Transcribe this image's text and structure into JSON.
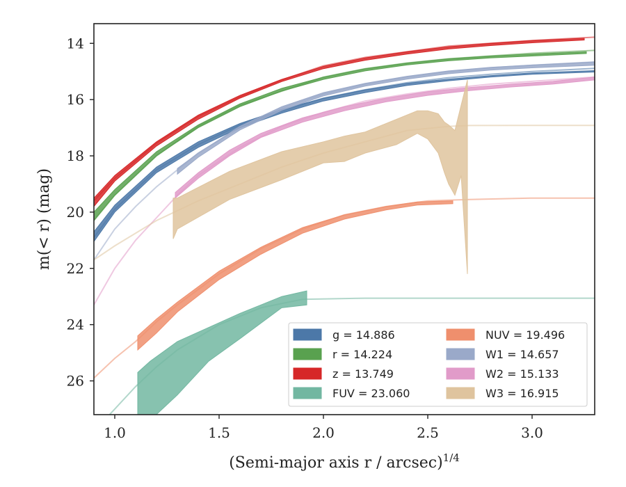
{
  "chart_data": {
    "type": "line",
    "xlabel": "(Semi-major axis r / arcsec)",
    "xlabel_sup": "1/4",
    "ylabel": "m(< r) (mag)",
    "xlim": [
      0.9,
      3.3
    ],
    "ylim": [
      27.2,
      13.3
    ],
    "y_inverted": true,
    "x_ticks": [
      "1.0",
      "1.5",
      "2.0",
      "2.5",
      "3.0"
    ],
    "y_ticks": [
      "14",
      "16",
      "18",
      "20",
      "22",
      "24",
      "26"
    ],
    "grid": false,
    "legend_placement": "lower-right",
    "legend_columns": 2,
    "series": [
      {
        "name": "g",
        "label": "g = 14.886",
        "color": "#4c78a8",
        "faint_x": [
          0.9,
          1.0,
          1.2,
          1.4,
          1.6,
          1.8,
          2.0,
          2.2,
          2.4,
          2.6,
          2.8,
          3.0,
          3.3
        ],
        "faint_y": [
          20.9,
          19.9,
          18.5,
          17.6,
          16.9,
          16.4,
          15.95,
          15.65,
          15.4,
          15.22,
          15.1,
          15.0,
          14.89
        ],
        "band_x": [
          0.9,
          1.0,
          1.2,
          1.4,
          1.6,
          1.8,
          2.0,
          2.2,
          2.4,
          2.6,
          2.8,
          3.0,
          3.3
        ],
        "band_lo": [
          20.7,
          19.75,
          18.4,
          17.5,
          16.85,
          16.35,
          15.95,
          15.65,
          15.42,
          15.27,
          15.15,
          15.05,
          14.97
        ],
        "band_hi": [
          21.05,
          20.0,
          18.6,
          17.7,
          17.0,
          16.48,
          16.05,
          15.75,
          15.5,
          15.33,
          15.2,
          15.1,
          15.02
        ]
      },
      {
        "name": "r",
        "label": "r = 14.224",
        "color": "#59a14f",
        "faint_x": [
          0.9,
          1.0,
          1.2,
          1.4,
          1.6,
          1.8,
          2.0,
          2.2,
          2.4,
          2.6,
          2.8,
          3.0,
          3.3
        ],
        "faint_y": [
          20.3,
          19.4,
          18.0,
          16.95,
          16.2,
          15.7,
          15.2,
          14.9,
          14.7,
          14.55,
          14.45,
          14.35,
          14.25
        ],
        "band_x": [
          0.9,
          1.0,
          1.2,
          1.4,
          1.6,
          1.8,
          2.0,
          2.2,
          2.4,
          2.6,
          2.8,
          3.0,
          3.26
        ],
        "band_lo": [
          20.0,
          19.2,
          17.85,
          16.9,
          16.15,
          15.6,
          15.2,
          14.9,
          14.7,
          14.55,
          14.45,
          14.38,
          14.3
        ],
        "band_hi": [
          20.3,
          19.4,
          18.0,
          17.0,
          16.25,
          15.7,
          15.28,
          14.98,
          14.77,
          14.62,
          14.52,
          14.45,
          14.36
        ]
      },
      {
        "name": "z",
        "label": "z = 13.749",
        "color": "#d62728",
        "faint_x": [
          0.9,
          1.0,
          1.2,
          1.4,
          1.6,
          1.8,
          2.0,
          2.2,
          2.4,
          2.6,
          2.8,
          3.0,
          3.3
        ],
        "faint_y": [
          19.6,
          18.8,
          17.55,
          16.6,
          15.9,
          15.3,
          14.8,
          14.5,
          14.3,
          14.1,
          14.0,
          13.9,
          13.78
        ],
        "band_x": [
          0.9,
          1.0,
          1.2,
          1.4,
          1.6,
          1.8,
          2.0,
          2.2,
          2.4,
          2.6,
          2.8,
          3.0,
          3.25
        ],
        "band_lo": [
          19.5,
          18.7,
          17.5,
          16.55,
          15.85,
          15.28,
          14.82,
          14.52,
          14.3,
          14.12,
          14.0,
          13.9,
          13.82
        ],
        "band_hi": [
          19.8,
          18.9,
          17.65,
          16.7,
          15.95,
          15.36,
          14.9,
          14.6,
          14.38,
          14.2,
          14.08,
          13.98,
          13.88
        ]
      },
      {
        "name": "FUV",
        "label": "FUV = 23.060",
        "color": "#72b7a1",
        "faint_x": [
          0.9,
          1.0,
          1.1,
          1.2,
          1.3,
          1.5,
          1.7,
          1.9,
          2.2,
          2.6,
          3.0,
          3.3
        ],
        "faint_y": [
          27.8,
          27.0,
          26.2,
          25.5,
          24.9,
          24.0,
          23.4,
          23.1,
          23.06,
          23.06,
          23.06,
          23.06
        ],
        "band_x": [
          1.11,
          1.17,
          1.3,
          1.45,
          1.6,
          1.8,
          1.92
        ],
        "band_lo": [
          25.7,
          25.3,
          24.6,
          24.1,
          23.6,
          23.0,
          22.8
        ],
        "band_hi": [
          27.5,
          27.4,
          26.5,
          25.3,
          24.5,
          23.4,
          23.3
        ]
      },
      {
        "name": "NUV",
        "label": "NUV = 19.496",
        "color": "#ef8f6d",
        "faint_x": [
          0.9,
          1.0,
          1.1,
          1.2,
          1.3,
          1.5,
          1.7,
          1.9,
          2.1,
          2.3,
          2.5,
          2.7,
          3.0,
          3.3
        ],
        "faint_y": [
          25.9,
          25.2,
          24.6,
          23.9,
          23.3,
          22.2,
          21.3,
          20.6,
          20.1,
          19.8,
          19.6,
          19.55,
          19.5,
          19.5
        ],
        "band_x": [
          1.11,
          1.2,
          1.3,
          1.5,
          1.7,
          1.9,
          2.1,
          2.3,
          2.45,
          2.62
        ],
        "band_lo": [
          24.4,
          23.8,
          23.2,
          22.1,
          21.25,
          20.55,
          20.1,
          19.8,
          19.64,
          19.6
        ],
        "band_hi": [
          24.9,
          24.3,
          23.55,
          22.4,
          21.5,
          20.75,
          20.25,
          19.92,
          19.75,
          19.7
        ]
      },
      {
        "name": "W1",
        "label": "W1 = 14.657",
        "color": "#9aa9c9",
        "faint_x": [
          0.9,
          1.0,
          1.1,
          1.2,
          1.3,
          1.4,
          1.6,
          1.8,
          2.0,
          2.2,
          2.4,
          2.6,
          2.8,
          3.0,
          3.3
        ],
        "faint_y": [
          21.7,
          20.6,
          19.8,
          19.1,
          18.5,
          17.9,
          17.0,
          16.3,
          15.8,
          15.45,
          15.2,
          15.0,
          14.87,
          14.78,
          14.66
        ],
        "band_x": [
          1.3,
          1.4,
          1.6,
          1.8,
          2.0,
          2.2,
          2.4,
          2.6,
          2.8,
          3.0,
          3.3
        ],
        "band_lo": [
          18.45,
          17.9,
          16.95,
          16.25,
          15.75,
          15.42,
          15.17,
          14.98,
          14.85,
          14.77,
          14.66
        ],
        "band_hi": [
          18.65,
          18.05,
          17.08,
          16.38,
          15.87,
          15.52,
          15.27,
          15.08,
          14.95,
          14.87,
          14.78
        ]
      },
      {
        "name": "W2",
        "label": "W2 = 15.133",
        "color": "#e19bc9",
        "faint_x": [
          0.9,
          1.0,
          1.1,
          1.2,
          1.3,
          1.4,
          1.6,
          1.8,
          2.0,
          2.2,
          2.4,
          2.6,
          2.8,
          3.0,
          3.3
        ],
        "faint_y": [
          23.3,
          22.0,
          21.0,
          20.2,
          19.4,
          18.7,
          17.7,
          16.95,
          16.45,
          16.05,
          15.8,
          15.6,
          15.45,
          15.35,
          15.2
        ],
        "band_x": [
          1.29,
          1.4,
          1.55,
          1.7,
          1.9,
          2.1,
          2.3,
          2.5,
          2.7,
          2.9,
          3.1,
          3.3
        ],
        "band_lo": [
          19.3,
          18.6,
          17.8,
          17.2,
          16.65,
          16.25,
          15.95,
          15.72,
          15.57,
          15.45,
          15.35,
          15.2
        ],
        "band_hi": [
          19.5,
          18.8,
          18.0,
          17.35,
          16.8,
          16.4,
          16.08,
          15.85,
          15.68,
          15.55,
          15.45,
          15.3
        ]
      },
      {
        "name": "W3",
        "label": "W3 = 16.915",
        "color": "#dfc49e",
        "faint_x": [
          0.9,
          1.0,
          1.2,
          1.4,
          1.6,
          1.8,
          2.0,
          2.2,
          2.4,
          2.6,
          2.7,
          3.0,
          3.3
        ],
        "faint_y": [
          21.7,
          21.2,
          20.3,
          19.6,
          19.0,
          18.4,
          17.9,
          17.5,
          17.1,
          16.95,
          16.92,
          16.915,
          16.915
        ],
        "band_x": [
          1.28,
          1.3,
          1.55,
          1.8,
          2.0,
          2.1,
          2.2,
          2.35,
          2.45,
          2.5,
          2.55,
          2.58,
          2.6,
          2.63,
          2.66,
          2.69
        ],
        "band_lo": [
          19.5,
          19.5,
          18.55,
          17.85,
          17.5,
          17.3,
          17.15,
          16.7,
          16.4,
          16.4,
          16.5,
          16.8,
          16.9,
          17.1,
          16.2,
          15.3
        ],
        "band_hi": [
          20.95,
          20.6,
          19.55,
          18.85,
          18.25,
          18.2,
          17.9,
          17.6,
          17.2,
          17.4,
          17.9,
          18.6,
          19.0,
          19.4,
          18.7,
          22.2
        ]
      }
    ],
    "legend_order": [
      "g",
      "r",
      "z",
      "FUV",
      "NUV",
      "W1",
      "W2",
      "W3"
    ]
  }
}
